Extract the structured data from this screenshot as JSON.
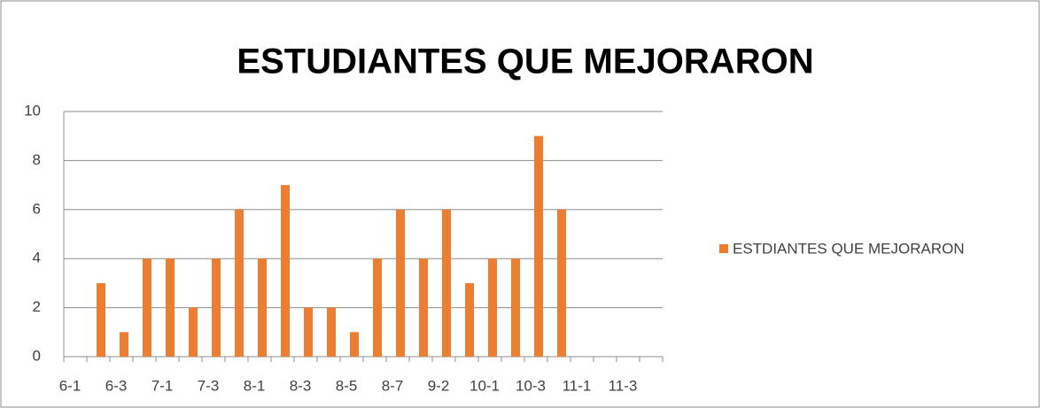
{
  "chart_data": {
    "type": "bar",
    "title": "ESTUDIANTES QUE MEJORARON",
    "categories": [
      "6-1",
      null,
      "6-3",
      null,
      "7-1",
      null,
      "7-3",
      null,
      "8-1",
      null,
      "8-3",
      null,
      "8-5",
      null,
      "8-7",
      null,
      "9-2",
      null,
      "10-1",
      null,
      "10-3",
      null,
      "11-1",
      null,
      "11-3",
      null
    ],
    "series": [
      {
        "name": "ESTDIANTES QUE MEJORARON",
        "color": "#ed7d31",
        "values": [
          null,
          3,
          1,
          4,
          4,
          2,
          4,
          6,
          4,
          7,
          2,
          2,
          1,
          4,
          6,
          4,
          6,
          3,
          4,
          4,
          9,
          6,
          null,
          null,
          null,
          null
        ]
      }
    ],
    "ylim": [
      0,
      10
    ],
    "yticks": [
      0,
      2,
      4,
      6,
      8,
      10
    ],
    "grid": true,
    "legend": "right"
  }
}
